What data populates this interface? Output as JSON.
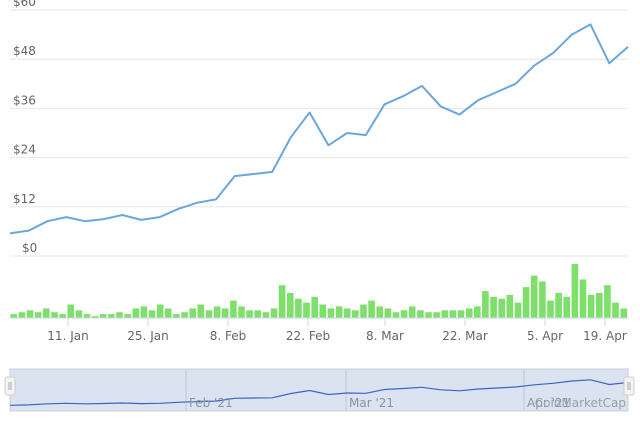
{
  "chart_data": {
    "type": "line",
    "title": "",
    "xlabel": "",
    "ylabel": "",
    "ylim": [
      0,
      60
    ],
    "grid": true,
    "legend": "none",
    "y_ticks": [
      "$0",
      "$12",
      "$24",
      "$36",
      "$48",
      "$60"
    ],
    "x_ticks": [
      "11. Jan",
      "25. Jan",
      "8. Feb",
      "22. Feb",
      "8. Mar",
      "22. Mar",
      "5. Apr",
      "19. Apr"
    ],
    "navigator_labels": [
      "Feb '21",
      "Mar '21",
      "Apr '21"
    ],
    "credit": "CoinMarketCap",
    "series": [
      {
        "name": "Price",
        "color": "#6aa7de",
        "x": [
          "1 Jan",
          "4 Jan",
          "7 Jan",
          "11 Jan",
          "14 Jan",
          "18 Jan",
          "21 Jan",
          "25 Jan",
          "28 Jan",
          "1 Feb",
          "4 Feb",
          "8 Feb",
          "11 Feb",
          "15 Feb",
          "18 Feb",
          "22 Feb",
          "25 Feb",
          "1 Mar",
          "4 Mar",
          "8 Mar",
          "11 Mar",
          "15 Mar",
          "18 Mar",
          "22 Mar",
          "25 Mar",
          "29 Mar",
          "1 Apr",
          "5 Apr",
          "8 Apr",
          "12 Apr",
          "15 Apr",
          "19 Apr",
          "21 Apr",
          "23 Apr"
        ],
        "values": [
          5.5,
          6.2,
          8.5,
          9.5,
          8.5,
          9.0,
          10.0,
          8.8,
          9.5,
          11.5,
          13.0,
          13.8,
          19.5,
          20.0,
          20.5,
          29.0,
          35.0,
          27.0,
          30.0,
          29.5,
          37.0,
          39.0,
          41.5,
          36.5,
          34.5,
          38.0,
          40.0,
          42.0,
          46.5,
          49.5,
          54.0,
          56.5,
          47.0,
          51.0
        ]
      },
      {
        "name": "Volume",
        "color": "#7ee06a",
        "relative_values": [
          2,
          3,
          4,
          3,
          5,
          3,
          2,
          7,
          4,
          2,
          1,
          2,
          2,
          3,
          2,
          5,
          6,
          4,
          7,
          5,
          2,
          3,
          5,
          7,
          4,
          6,
          5,
          9,
          6,
          4,
          4,
          3,
          5,
          17,
          13,
          10,
          8,
          11,
          7,
          5,
          6,
          5,
          4,
          7,
          9,
          6,
          5,
          3,
          4,
          6,
          4,
          3,
          3,
          4,
          4,
          4,
          5,
          6,
          14,
          11,
          10,
          12,
          8,
          16,
          22,
          19,
          9,
          13,
          11,
          28,
          20,
          12,
          13,
          17,
          8,
          5
        ]
      }
    ]
  }
}
